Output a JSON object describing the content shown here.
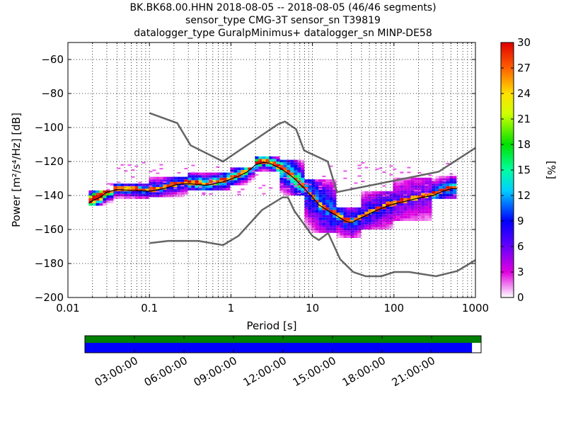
{
  "title_lines": [
    "BK.BK68.00.HHN   2018-08-05 -- 2018-08-05  (46/46 segments)",
    "sensor_type CMG-3T sensor_sn T39819",
    "datalogger_type GuralpMinimus+ datalogger_sn MINP-DE58"
  ],
  "chart_data": {
    "type": "heatmap",
    "xlabel": "Period [s]",
    "ylabel": "Power [m²/s⁴/Hz] [dB]",
    "xscale": "log",
    "xlim": [
      0.01,
      1000
    ],
    "ylim": [
      -200,
      -50
    ],
    "x_ticks": [
      {
        "value": 0.01,
        "label": "0.01"
      },
      {
        "value": 0.1,
        "label": "0.1"
      },
      {
        "value": 1,
        "label": "1"
      },
      {
        "value": 10,
        "label": "10"
      },
      {
        "value": 100,
        "label": "100"
      },
      {
        "value": 1000,
        "label": "1000"
      }
    ],
    "y_ticks": [
      {
        "value": -60,
        "label": "−60"
      },
      {
        "value": -80,
        "label": "−80"
      },
      {
        "value": -100,
        "label": "−100"
      },
      {
        "value": -120,
        "label": "−120"
      },
      {
        "value": -140,
        "label": "−140"
      },
      {
        "value": -160,
        "label": "−160"
      },
      {
        "value": -180,
        "label": "−180"
      },
      {
        "value": -200,
        "label": "−200"
      }
    ],
    "grid": true,
    "colorbar": {
      "label": "[%]",
      "range": [
        0,
        30
      ],
      "ticks": [
        "0",
        "3",
        "6",
        "9",
        "12",
        "15",
        "18",
        "21",
        "24",
        "27",
        "30"
      ]
    },
    "noise_models": [
      {
        "model": "NHNM",
        "points": [
          [
            0.1,
            -91.5
          ],
          [
            0.22,
            -97.4
          ],
          [
            0.32,
            -110.5
          ],
          [
            0.8,
            -120
          ],
          [
            3.8,
            -98
          ],
          [
            4.6,
            -96.5
          ],
          [
            6.3,
            -101
          ],
          [
            7.9,
            -113.5
          ],
          [
            15.4,
            -120
          ],
          [
            20,
            -138
          ],
          [
            354,
            -126
          ],
          [
            1000,
            -112
          ]
        ]
      },
      {
        "model": "NLNM",
        "points": [
          [
            0.1,
            -168
          ],
          [
            0.17,
            -166.7
          ],
          [
            0.4,
            -166.7
          ],
          [
            0.8,
            -169.2
          ],
          [
            1.24,
            -163.7
          ],
          [
            2.4,
            -148.6
          ],
          [
            4.3,
            -141.1
          ],
          [
            5,
            -141.1
          ],
          [
            6,
            -149
          ],
          [
            10,
            -163.8
          ],
          [
            12,
            -166.2
          ],
          [
            15.6,
            -162.1
          ],
          [
            21.9,
            -177.5
          ],
          [
            31.6,
            -185
          ],
          [
            45,
            -187.5
          ],
          [
            70,
            -187.5
          ],
          [
            101,
            -185
          ],
          [
            154,
            -185
          ],
          [
            328,
            -187.5
          ],
          [
            600,
            -184.4
          ],
          [
            1000,
            -178
          ]
        ]
      }
    ],
    "mode_curve": [
      [
        0.018,
        -144.5
      ],
      [
        0.02,
        -143
      ],
      [
        0.025,
        -141
      ],
      [
        0.03,
        -138
      ],
      [
        0.04,
        -136.5
      ],
      [
        0.06,
        -137
      ],
      [
        0.1,
        -137.5
      ],
      [
        0.15,
        -136
      ],
      [
        0.22,
        -133.5
      ],
      [
        0.3,
        -133
      ],
      [
        0.5,
        -134
      ],
      [
        0.8,
        -132
      ],
      [
        1.2,
        -129
      ],
      [
        1.6,
        -126
      ],
      [
        2,
        -122
      ],
      [
        2.5,
        -120.5
      ],
      [
        3,
        -121
      ],
      [
        4,
        -124
      ],
      [
        5,
        -127
      ],
      [
        6,
        -130
      ],
      [
        8,
        -136
      ],
      [
        10,
        -141
      ],
      [
        12,
        -145.5
      ],
      [
        15,
        -148.5
      ],
      [
        20,
        -152
      ],
      [
        25,
        -155
      ],
      [
        30,
        -156
      ],
      [
        40,
        -153
      ],
      [
        60,
        -149
      ],
      [
        80,
        -146.5
      ],
      [
        100,
        -145
      ],
      [
        150,
        -143
      ],
      [
        200,
        -141.5
      ],
      [
        300,
        -140
      ],
      [
        400,
        -137.5
      ],
      [
        500,
        -136
      ],
      [
        600,
        -136
      ]
    ],
    "histogram_bands": [
      {
        "x0": 0.018,
        "x1": 0.035,
        "y_low": -146,
        "y_high": -138,
        "density": 30
      },
      {
        "x0": 0.035,
        "x1": 0.1,
        "y_low": -142,
        "y_high": -134,
        "density": 12
      },
      {
        "x0": 0.1,
        "x1": 0.3,
        "y_low": -141,
        "y_high": -130,
        "density": 10
      },
      {
        "x0": 0.3,
        "x1": 1.0,
        "y_low": -137,
        "y_high": -127,
        "density": 14
      },
      {
        "x0": 1.0,
        "x1": 2.0,
        "y_low": -134,
        "y_high": -124,
        "density": 15
      },
      {
        "x0": 2.0,
        "x1": 4.0,
        "y_low": -126,
        "y_high": -118,
        "density": 18
      },
      {
        "x0": 4.0,
        "x1": 8.0,
        "y_low": -140,
        "y_high": -120,
        "density": 14
      },
      {
        "x0": 8.0,
        "x1": 20,
        "y_low": -162,
        "y_high": -132,
        "density": 10
      },
      {
        "x0": 20,
        "x1": 40,
        "y_low": -165,
        "y_high": -148,
        "density": 10
      },
      {
        "x0": 40,
        "x1": 100,
        "y_low": -160,
        "y_high": -138,
        "density": 8
      },
      {
        "x0": 100,
        "x1": 300,
        "y_low": -155,
        "y_high": -130,
        "density": 6
      },
      {
        "x0": 300,
        "x1": 600,
        "y_low": -142,
        "y_high": -130,
        "density": 12
      }
    ],
    "sparse_band": {
      "x0": 0.03,
      "x1": 600,
      "y_low": -140,
      "y_high": -120,
      "density": 2
    }
  },
  "timeline": {
    "tick_labels": [
      "03:00:00",
      "06:00:00",
      "09:00:00",
      "12:00:00",
      "15:00:00",
      "18:00:00",
      "21:00:00"
    ],
    "tick_hours": [
      3,
      6,
      9,
      12,
      15,
      18,
      21
    ],
    "range_hours": [
      0,
      24
    ],
    "upper_bar_color": "#008000",
    "upper_fraction": 1.0,
    "lower_bar_color": "#0000ff",
    "lower_fraction": 0.977
  }
}
